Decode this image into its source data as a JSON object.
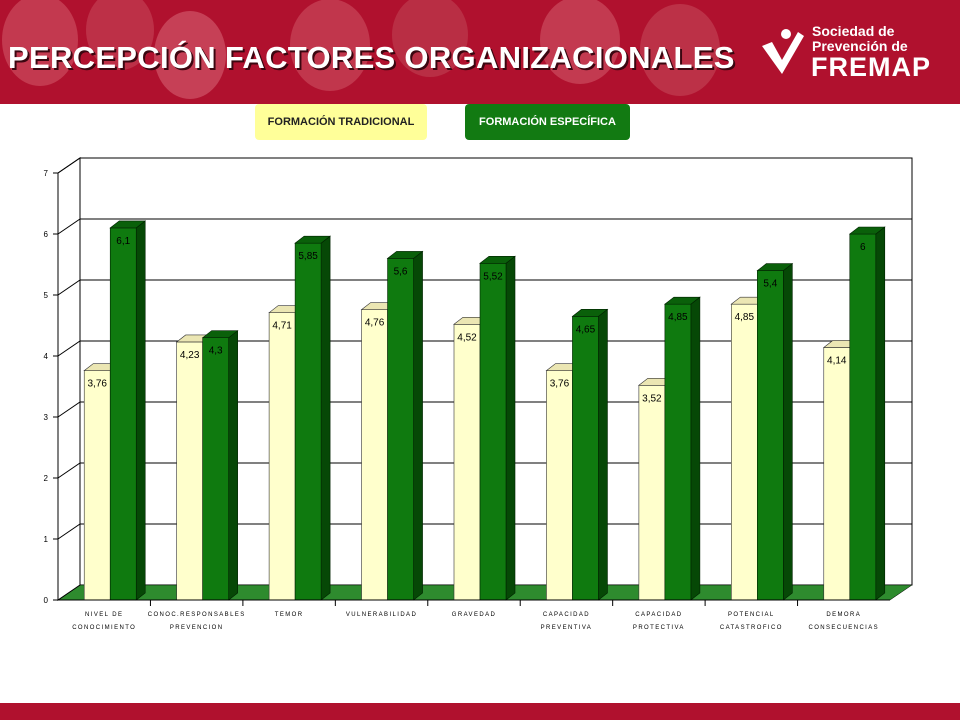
{
  "page": {
    "title": "PERCEPCIÓN FACTORES ORGANIZACIONALES",
    "header_color": "#b0112e"
  },
  "logo": {
    "line1": "Sociedad de",
    "line2": "Prevención de",
    "word": "FREMAP"
  },
  "chart_data": {
    "type": "bar",
    "categories": [
      [
        "NIVEL DE",
        "CONOCIMIENTO"
      ],
      [
        "CONOC.RESPONSABLES",
        "PREVENCION"
      ],
      [
        "TEMOR"
      ],
      [
        "VULNERABILIDAD"
      ],
      [
        "GRAVEDAD"
      ],
      [
        "CAPACIDAD",
        "PREVENTIVA"
      ],
      [
        "CAPACIDAD",
        "PROTECTIVA"
      ],
      [
        "POTENCIAL",
        "CATASTROFICO"
      ],
      [
        "DEMORA",
        "CONSECUENCIAS"
      ]
    ],
    "series": [
      {
        "name": "FORMACIÓN TRADICIONAL",
        "color": "#ffffcc",
        "values": [
          3.76,
          4.23,
          4.71,
          4.76,
          4.52,
          3.76,
          3.52,
          4.85,
          4.14
        ],
        "labels": [
          "3,76",
          "4,23",
          "4,71",
          "4,76",
          "4,52",
          "3,76",
          "3,52",
          "4,85",
          "4,14"
        ]
      },
      {
        "name": "FORMACIÓN ESPECÍFICA",
        "color": "#0f7a0f",
        "values": [
          6.1,
          4.3,
          5.85,
          5.6,
          5.52,
          4.65,
          4.85,
          5.4,
          6
        ],
        "labels": [
          "6,1",
          "4,3",
          "5,85",
          "5,6",
          "5,52",
          "4,65",
          "4,85",
          "5,4",
          "6"
        ]
      }
    ],
    "y_ticks": [
      "0",
      "1",
      "2",
      "3",
      "4",
      "5",
      "6",
      "7"
    ],
    "ylim": [
      0,
      7
    ],
    "grid": true,
    "legend_position": "top"
  }
}
